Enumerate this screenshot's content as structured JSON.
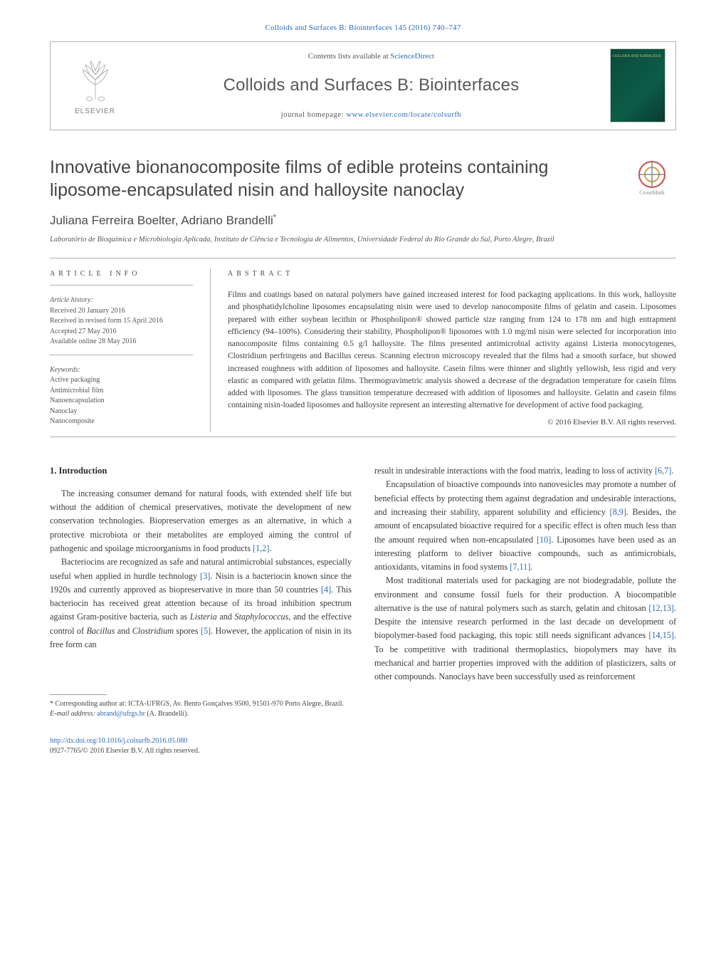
{
  "header": {
    "journal_ref_link_text": "Colloids and Surfaces B: Biointerfaces 145 (2016) 740–747",
    "contents_prefix": "Contents lists available at ",
    "contents_link": "ScienceDirect",
    "journal_title": "Colloids and Surfaces B: Biointerfaces",
    "homepage_prefix": "journal homepage: ",
    "homepage_link": "www.elsevier.com/locate/colsurfb",
    "publisher_word": "ELSEVIER",
    "cover_text": "COLLOIDS AND\nSURFACES B"
  },
  "article": {
    "title": "Innovative bionanocomposite films of edible proteins containing liposome-encapsulated nisin and halloysite nanoclay",
    "crossmark_label": "CrossMark",
    "authors_html": "Juliana Ferreira Boelter, Adriano Brandelli",
    "corr_marker": "*",
    "affiliation": "Laboratório de Bioquímica e Microbiologia Aplicada, Instituto de Ciência e Tecnologia de Alimentos, Universidade Federal do Rio Grande do Sul, Porto Alegre, Brazil"
  },
  "info": {
    "heading": "article info",
    "history_label": "Article history:",
    "received": "Received 20 January 2016",
    "revised": "Received in revised form 15 April 2016",
    "accepted": "Accepted 27 May 2016",
    "online": "Available online 28 May 2016",
    "keywords_label": "Keywords:",
    "keywords": [
      "Active packaging",
      "Antimicrobial film",
      "Nanoencapsulation",
      "Nanoclay",
      "Nanocomposite"
    ]
  },
  "abstract": {
    "heading": "abstract",
    "text": "Films and coatings based on natural polymers have gained increased interest for food packaging applications. In this work, halloysite and phosphatidylcholine liposomes encapsulating nisin were used to develop nanocomposite films of gelatin and casein. Liposomes prepared with either soybean lecithin or Phospholipon® showed particle size ranging from 124 to 178 nm and high entrapment efficiency (94–100%). Considering their stability, Phospholipon® liposomes with 1.0 mg/ml nisin were selected for incorporation into nanocomposite films containing 0.5 g/l halloysite. The films presented antimicrobial activity against Listeria monocytogenes, Clostridium perfringens and Bacillus cereus. Scanning electron microscopy revealed that the films had a smooth surface, but showed increased roughness with addition of liposomes and halloysite. Casein films were thinner and slightly yellowish, less rigid and very elastic as compared with gelatin films. Thermogravimetric analysis showed a decrease of the degradation temperature for casein films added with liposomes. The glass transition temperature decreased with addition of liposomes and halloysite. Gelatin and casein films containing nisin-loaded liposomes and halloysite represent an interesting alternative for development of active food packaging.",
    "copyright": "© 2016 Elsevier B.V. All rights reserved."
  },
  "body": {
    "section_heading": "1.  Introduction",
    "left": [
      "The increasing consumer demand for natural foods, with extended shelf life but without the addition of chemical preservatives, motivate the development of new conservation technologies. Biopreservation emerges as an alternative, in which a protective microbiota or their metabolites are employed aiming the control of pathogenic and spoilage microorganisms in food products <span class=\"cite\">[1,2]</span>.",
      "Bacteriocins are recognized as safe and natural antimicrobial substances, especially useful when applied in hurdle technology <span class=\"cite\">[3]</span>. Nisin is a bacteriocin known since the 1920s and currently approved as biopreservative in more than 50 countries <span class=\"cite\">[4]</span>. This bacteriocin has received great attention because of its broad inhibition spectrum against Gram-positive bacteria, such as <span class=\"italic\">Listeria</span> and <span class=\"italic\">Staphylococcus</span>, and the effective control of <span class=\"italic\">Bacillus</span> and <span class=\"italic\">Clostridium</span> spores <span class=\"cite\">[5]</span>. However, the application of nisin in its free form can"
    ],
    "right": [
      "result in undesirable interactions with the food matrix, leading to loss of activity <span class=\"cite\">[6,7]</span>.",
      "Encapsulation of bioactive compounds into nanovesicles may promote a number of beneficial effects by protecting them against degradation and undesirable interactions, and increasing their stability, apparent solubility and efficiency <span class=\"cite\">[8,9]</span>. Besides, the amount of encapsulated bioactive required for a specific effect is often much less than the amount required when non-encapsulated <span class=\"cite\">[10]</span>. Liposomes have been used as an interesting platform to deliver bioactive compounds, such as antimicrobials, antioxidants, vitamins in food systems <span class=\"cite\">[7,11]</span>.",
      "Most traditional materials used for packaging are not biodegradable, pollute the environment and consume fossil fuels for their production. A biocompatible alternative is the use of natural polymers such as starch, gelatin and chitosan <span class=\"cite\">[12,13]</span>. Despite the intensive research performed in the last decade on development of biopolymer-based food packaging, this topic still needs significant advances <span class=\"cite\">[14,15]</span>. To be competitive with traditional thermoplastics, biopolymers may have its mechanical and barrier properties improved with the addition of plasticizers, salts or other compounds. Nanoclays have been successfully used as reinforcement"
    ]
  },
  "footnotes": {
    "corr_prefix": "* Corresponding author at: ",
    "corr_text": "ICTA-UFRGS, Av. Bento Gonçalves 9500, 91501-970 Porto Alegre, Brazil.",
    "email_label": "E-mail address: ",
    "email": "abrand@ufrgs.br",
    "email_suffix": " (A. Brandelli)."
  },
  "doi": {
    "link": "http://dx.doi.org/10.1016/j.colsurfb.2016.05.080",
    "issn_line": "0927-7765/© 2016 Elsevier B.V. All rights reserved."
  }
}
